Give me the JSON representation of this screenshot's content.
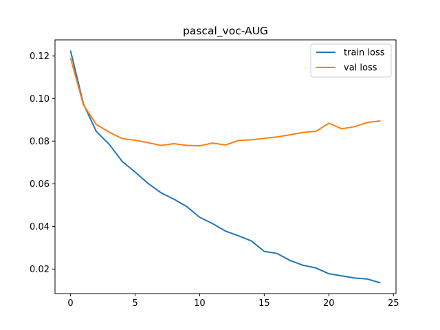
{
  "chart_data": {
    "type": "line",
    "title": "pascal_voc-AUG",
    "xlabel": "",
    "ylabel": "",
    "xlim": [
      -1.2,
      25.2
    ],
    "ylim": [
      0.0085,
      0.1275
    ],
    "xticks": [
      0,
      5,
      10,
      15,
      20,
      25
    ],
    "yticks": [
      0.02,
      0.04,
      0.06,
      0.08,
      0.1,
      0.12
    ],
    "ytick_labels": [
      "0.02",
      "0.04",
      "0.06",
      "0.08",
      "0.10",
      "0.12"
    ],
    "grid": false,
    "legend_position": "top-right",
    "x": [
      0,
      1,
      2,
      3,
      4,
      5,
      6,
      7,
      8,
      9,
      10,
      11,
      12,
      13,
      14,
      15,
      16,
      17,
      18,
      19,
      20,
      21,
      22,
      23,
      24
    ],
    "series": [
      {
        "name": "train loss",
        "color": "#1f77b4",
        "values": [
          0.1225,
          0.0975,
          0.0845,
          0.0785,
          0.0705,
          0.0655,
          0.0602,
          0.0558,
          0.0528,
          0.0493,
          0.0443,
          0.0413,
          0.0378,
          0.0356,
          0.0332,
          0.0283,
          0.0273,
          0.024,
          0.0218,
          0.0205,
          0.0178,
          0.0168,
          0.0158,
          0.0153,
          0.0135
        ]
      },
      {
        "name": "val loss",
        "color": "#ff7f0e",
        "values": [
          0.119,
          0.097,
          0.0878,
          0.0842,
          0.0812,
          0.0804,
          0.0793,
          0.078,
          0.0788,
          0.078,
          0.0778,
          0.0791,
          0.0782,
          0.0803,
          0.0806,
          0.0813,
          0.082,
          0.083,
          0.0841,
          0.0846,
          0.0884,
          0.0858,
          0.0868,
          0.0888,
          0.0895
        ]
      }
    ]
  }
}
